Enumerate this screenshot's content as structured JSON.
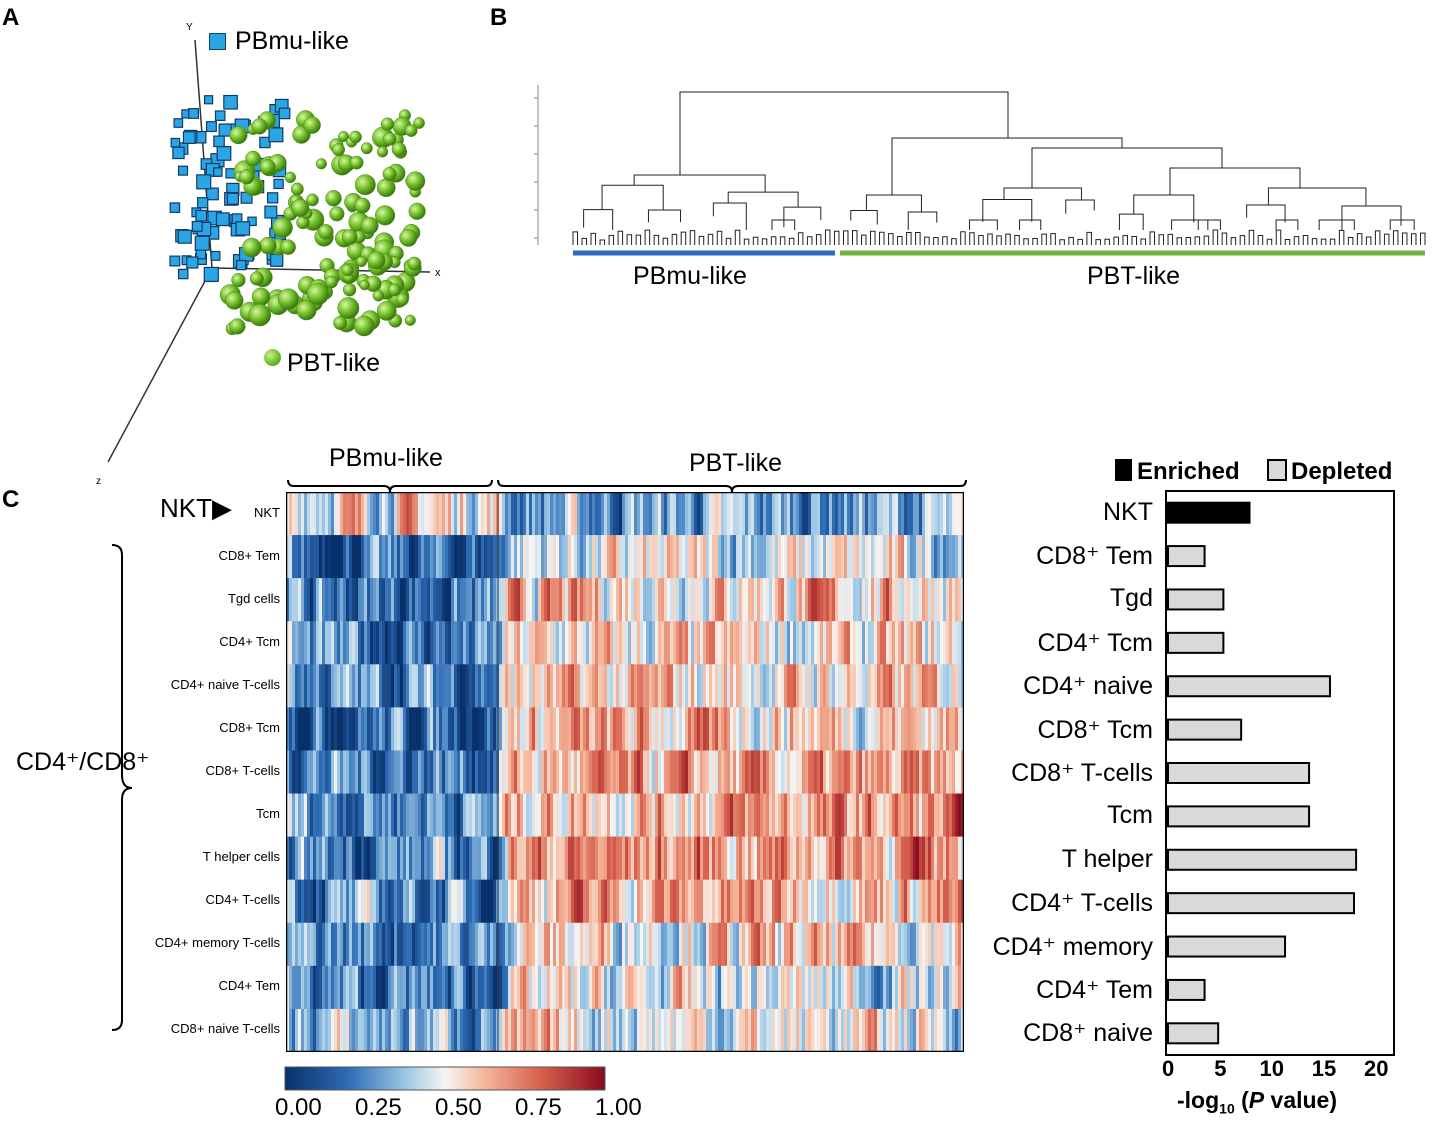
{
  "panels": {
    "a": "A",
    "b": "B",
    "c": "C"
  },
  "colors": {
    "pbmu": "#2aa6e6",
    "pbt": "#7cc52c",
    "enriched": "#000000",
    "depleted": "#d9d9d9",
    "blue_bar": "#2e6bc0",
    "green_bar": "#6db33f"
  },
  "panel_a": {
    "axes": {
      "x": "x",
      "y": "Y",
      "z": "z"
    },
    "legend": [
      {
        "label": "PBmu-like",
        "marker": "cube"
      },
      {
        "label": "PBT-like",
        "marker": "sphere"
      }
    ]
  },
  "panel_b": {
    "groups": [
      "PBmu-like",
      "PBT-like"
    ]
  },
  "chart_data": [
    {
      "type": "scatter",
      "panel": "A",
      "title": "",
      "xlabel": "x",
      "ylabel": "Y",
      "zlabel": "z",
      "series": [
        {
          "name": "PBmu-like",
          "marker": "cube"
        },
        {
          "name": "PBT-like",
          "marker": "sphere"
        }
      ]
    },
    {
      "type": "heatmap",
      "panel": "C",
      "column_groups": [
        "PBmu-like",
        "PBT-like"
      ],
      "rows": [
        "NKT",
        "CD8+ Tem",
        "Tgd cells",
        "CD4+ Tcm",
        "CD4+ naive T-cells",
        "CD8+ Tcm",
        "CD8+ T-cells",
        "Tcm",
        "T helper cells",
        "CD4+ T-cells",
        "CD4+ memory T-cells",
        "CD4+ Tem",
        "CD8+ naive T-cells"
      ],
      "row_callouts": {
        "nkt": "NKT▶",
        "bracket": "CD4⁺/CD8⁺"
      },
      "colorbar": {
        "ticks": [
          "0.00",
          "0.25",
          "0.50",
          "0.75",
          "1.00"
        ],
        "range": [
          0,
          1
        ]
      }
    },
    {
      "type": "bar",
      "panel": "C",
      "orientation": "horizontal",
      "legend": [
        {
          "label": "Enriched"
        },
        {
          "label": "Depleted"
        }
      ],
      "categories": [
        "NKT",
        "CD8⁺ Tem",
        "Tgd",
        "CD4⁺ Tcm",
        "CD4⁺ naive",
        "CD8⁺ Tcm",
        "CD8⁺ T-cells",
        "Tcm",
        "T helper",
        "CD4⁺ T-cells",
        "CD4⁺ memory",
        "CD4⁺ Tem",
        "CD8⁺ naive"
      ],
      "values": [
        7.8,
        3.5,
        5.3,
        5.3,
        15.5,
        7.0,
        13.5,
        13.5,
        18.0,
        17.8,
        11.2,
        3.5,
        4.8
      ],
      "status": [
        "Enriched",
        "Depleted",
        "Depleted",
        "Depleted",
        "Depleted",
        "Depleted",
        "Depleted",
        "Depleted",
        "Depleted",
        "Depleted",
        "Depleted",
        "Depleted",
        "Depleted"
      ],
      "xlim": [
        0,
        20
      ],
      "xticks": [
        "0",
        "5",
        "10",
        "15",
        "20"
      ],
      "xlabel_parts": [
        "-log",
        "10",
        " (",
        "P",
        " value)"
      ]
    }
  ]
}
